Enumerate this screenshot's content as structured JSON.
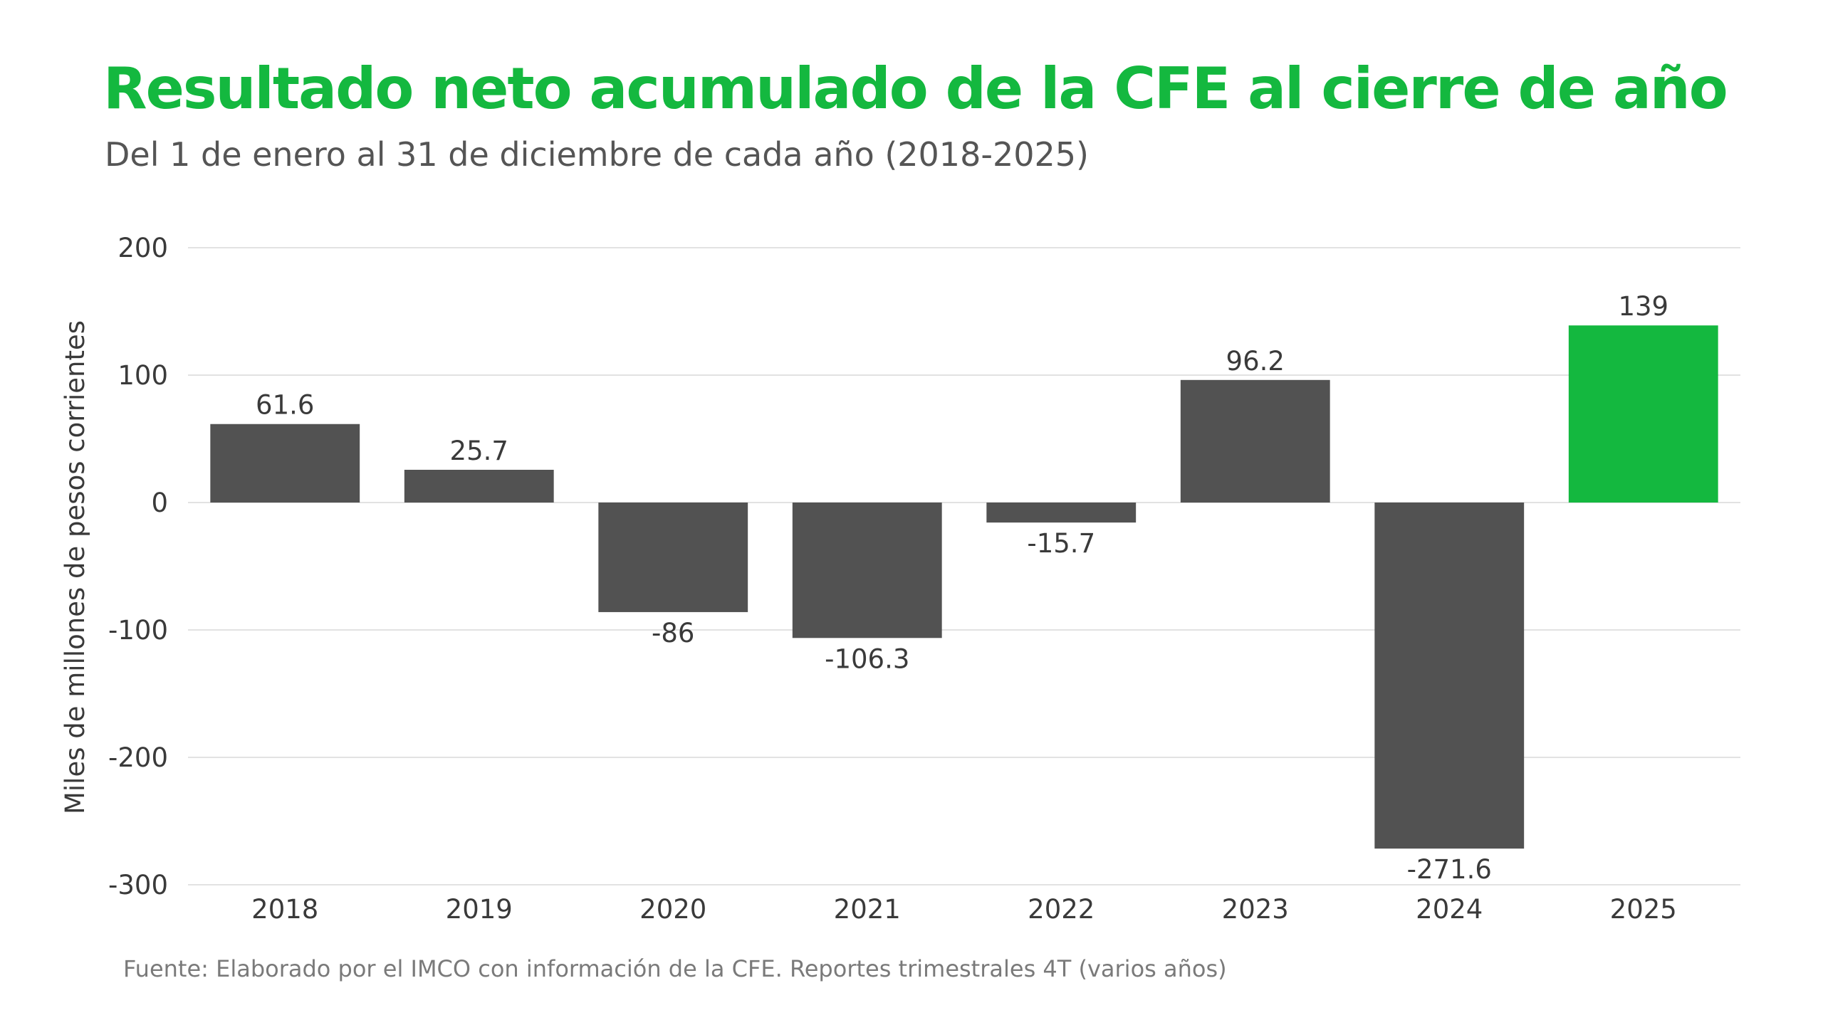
{
  "colors": {
    "title": "#14b83f",
    "bar_default": "#525252",
    "bar_highlight": "#14b83f",
    "grid": "#e2e2e2",
    "text": "#3a3a3a"
  },
  "chart_data": {
    "type": "bar",
    "title": "Resultado neto acumulado de la CFE al cierre de año",
    "subtitle": "Del 1 de enero al 31 de diciembre de cada año (2018-2025)",
    "ylabel": "Miles de millones de pesos corrientes",
    "xlabel": "",
    "categories": [
      "2018",
      "2019",
      "2020",
      "2021",
      "2022",
      "2023",
      "2024",
      "2025"
    ],
    "values": [
      61.6,
      25.7,
      -86,
      -106.3,
      -15.7,
      96.2,
      -271.6,
      139
    ],
    "data_labels": [
      "61.6",
      "25.7",
      "-86",
      "-106.3",
      "-15.7",
      "96.2",
      "-271.6",
      "139"
    ],
    "highlight_category": "2025",
    "ylim": [
      -300,
      200
    ],
    "yticks": [
      200,
      100,
      0,
      -100,
      -200,
      -300
    ],
    "grid": true,
    "legend": "none",
    "source": "Fuente: Elaborado por el IMCO con información de la CFE. Reportes trimestrales 4T (varios años)"
  }
}
